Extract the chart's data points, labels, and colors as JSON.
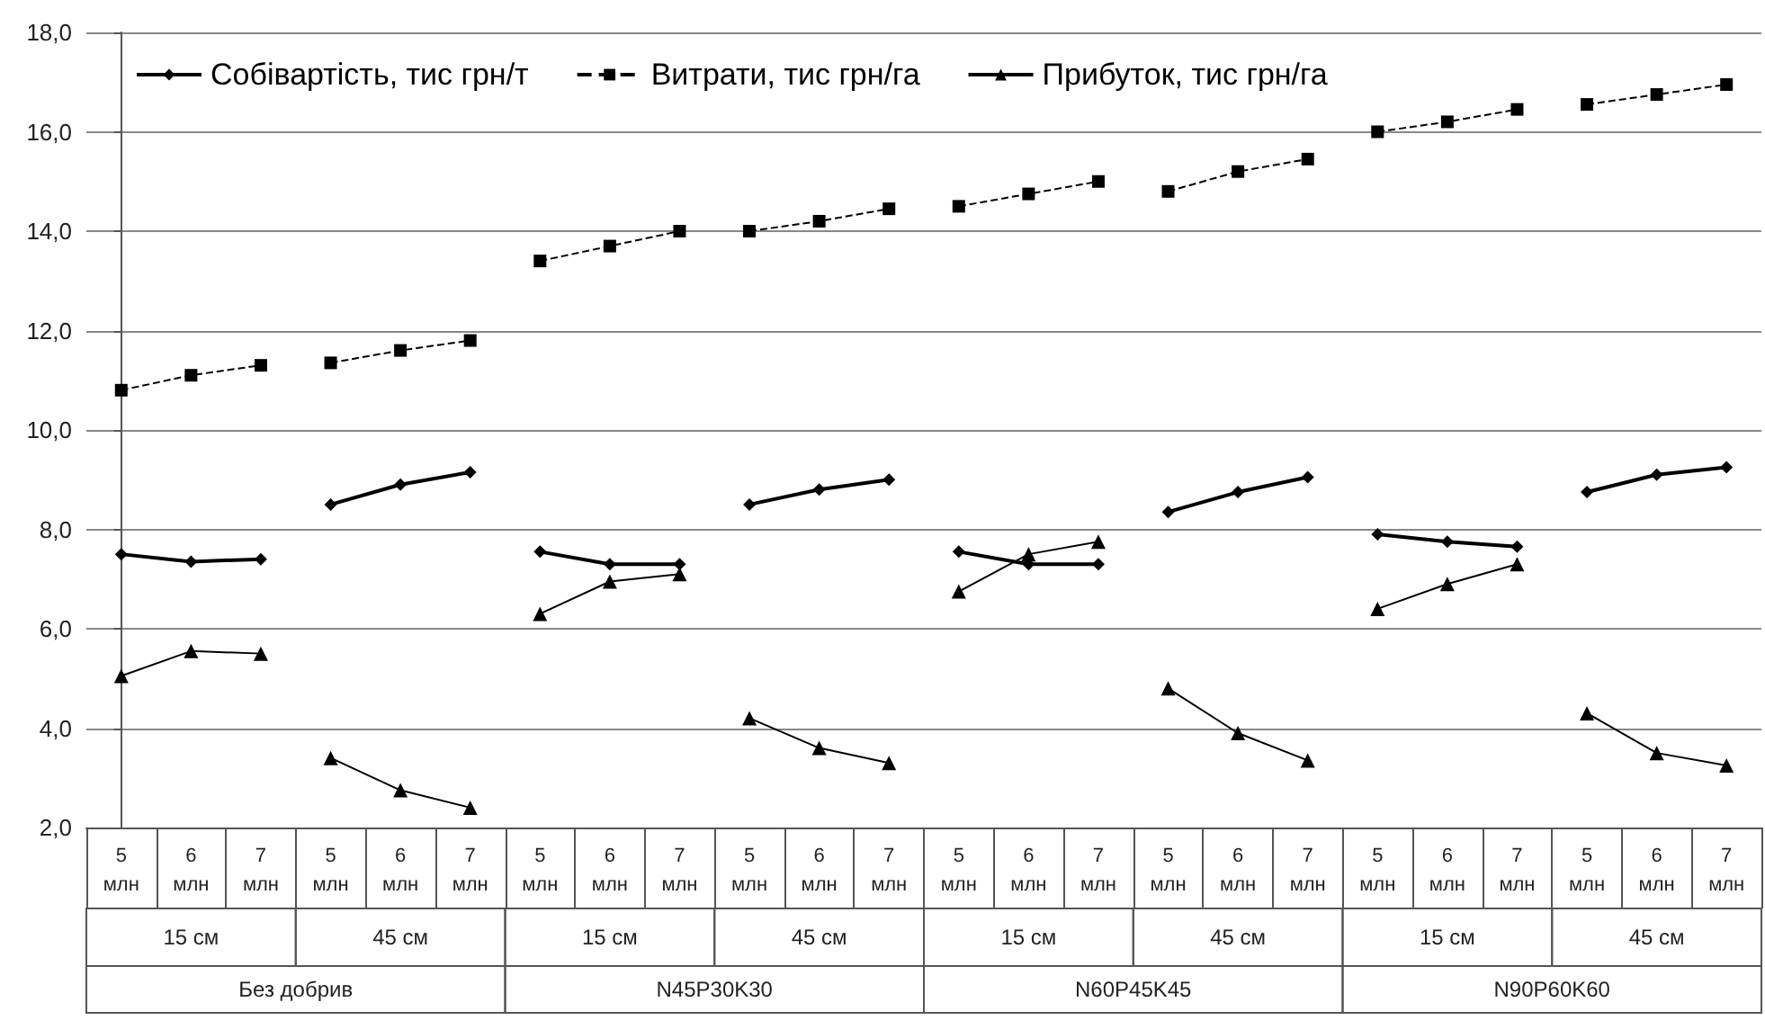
{
  "chart_data": {
    "type": "line",
    "categories": [
      "5\nмлн",
      "6\nмлн",
      "7\nмлн",
      "5\nмлн",
      "6\nмлн",
      "7\nмлн",
      "5\nмлн",
      "6\nмлн",
      "7\nмлн",
      "5\nмлн",
      "6\nмлн",
      "7\nмлн",
      "5\nмлн",
      "6\nмлн",
      "7\nмлн",
      "5\nмлн",
      "6\nмлн",
      "7\nмлн",
      "5\nмлн",
      "6\nмлн",
      "7\nмлн",
      "5\nмлн",
      "6\nмлн",
      "7\nмлн"
    ],
    "series": [
      {
        "name": "Собівартість, тис грн/т",
        "color": "#000000",
        "marker": "diamond",
        "line_style": "solid",
        "values": [
          7.5,
          7.35,
          7.4,
          8.5,
          8.9,
          9.15,
          7.55,
          7.3,
          7.3,
          8.5,
          8.8,
          9.0,
          7.55,
          7.3,
          7.3,
          8.35,
          8.75,
          9.05,
          7.9,
          7.75,
          7.65,
          8.75,
          9.1,
          9.25
        ]
      },
      {
        "name": "Витрати, тис грн/га",
        "color": "#000000",
        "marker": "square",
        "line_style": "dashed",
        "values": [
          10.8,
          11.1,
          11.3,
          11.35,
          11.6,
          11.8,
          13.4,
          13.7,
          14.0,
          14.0,
          14.2,
          14.45,
          14.5,
          14.75,
          15.0,
          14.8,
          15.2,
          15.45,
          16.0,
          16.2,
          16.45,
          16.55,
          16.75,
          16.95
        ]
      },
      {
        "name": "Прибуток, тис грн/га",
        "color": "#000000",
        "marker": "triangle",
        "line_style": "solid",
        "values": [
          5.05,
          5.55,
          5.5,
          3.4,
          2.75,
          2.4,
          6.3,
          6.95,
          7.1,
          4.2,
          3.6,
          3.3,
          6.75,
          7.5,
          7.75,
          4.8,
          3.9,
          3.35,
          6.4,
          6.9,
          7.3,
          4.3,
          3.5,
          3.25
        ]
      }
    ],
    "ylim": [
      2,
      18
    ],
    "yticks": [
      {
        "value": 2,
        "label": "2,0"
      },
      {
        "value": 4,
        "label": "4,0"
      },
      {
        "value": 6,
        "label": "6,0"
      },
      {
        "value": 8,
        "label": "8,0"
      },
      {
        "value": 10,
        "label": "10,0"
      },
      {
        "value": 12,
        "label": "12,0"
      },
      {
        "value": 14,
        "label": "14,0"
      },
      {
        "value": 16,
        "label": "16,0"
      },
      {
        "value": 18,
        "label": "18,0"
      }
    ],
    "grid": "y",
    "legend": "top left",
    "annotations": [
      "15 см",
      "45 см",
      "15 см",
      "45 см",
      "15 см",
      "45 см",
      "15 см",
      "45 см",
      "Без добрив",
      "N45P30K30",
      "N60P45K45",
      "N90P60K60"
    ]
  }
}
